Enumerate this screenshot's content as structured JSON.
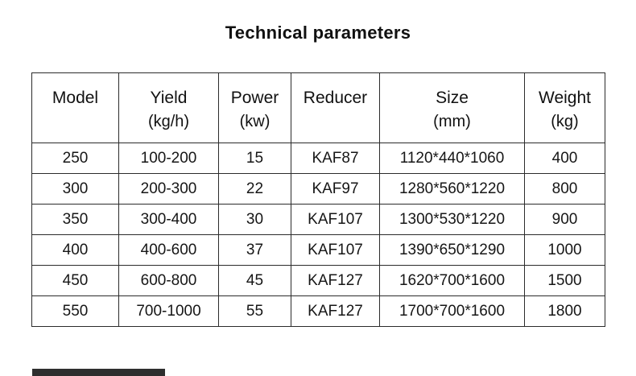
{
  "page": {
    "title": "Technical parameters"
  },
  "table": {
    "columns": [
      {
        "label": "Model",
        "unit": ""
      },
      {
        "label": "Yield",
        "unit": "(kg/h)"
      },
      {
        "label": "Power",
        "unit": "(kw)"
      },
      {
        "label": "Reducer",
        "unit": ""
      },
      {
        "label": "Size",
        "unit": "(mm)"
      },
      {
        "label": "Weight",
        "unit": "(kg)"
      }
    ],
    "rows": [
      [
        "250",
        "100-200",
        "15",
        "KAF87",
        "1120*440*1060",
        "400"
      ],
      [
        "300",
        "200-300",
        "22",
        "KAF97",
        "1280*560*1220",
        "800"
      ],
      [
        "350",
        "300-400",
        "30",
        "KAF107",
        "1300*530*1220",
        "900"
      ],
      [
        "400",
        "400-600",
        "37",
        "KAF107",
        "1390*650*1290",
        "1000"
      ],
      [
        "450",
        "600-800",
        "45",
        "KAF127",
        "1620*700*1600",
        "1500"
      ],
      [
        "550",
        "700-1000",
        "55",
        "KAF127",
        "1700*700*1600",
        "1800"
      ]
    ]
  },
  "chart_data": {
    "type": "table",
    "title": "Technical parameters",
    "columns": [
      "Model",
      "Yield (kg/h)",
      "Power (kw)",
      "Reducer",
      "Size (mm)",
      "Weight (kg)"
    ],
    "rows": [
      [
        "250",
        "100-200",
        "15",
        "KAF87",
        "1120*440*1060",
        "400"
      ],
      [
        "300",
        "200-300",
        "22",
        "KAF97",
        "1280*560*1220",
        "800"
      ],
      [
        "350",
        "300-400",
        "30",
        "KAF107",
        "1300*530*1220",
        "900"
      ],
      [
        "400",
        "400-600",
        "37",
        "KAF107",
        "1390*650*1290",
        "1000"
      ],
      [
        "450",
        "600-800",
        "45",
        "KAF127",
        "1620*700*1600",
        "1500"
      ],
      [
        "550",
        "700-1000",
        "55",
        "KAF127",
        "1700*700*1600",
        "1800"
      ]
    ]
  }
}
